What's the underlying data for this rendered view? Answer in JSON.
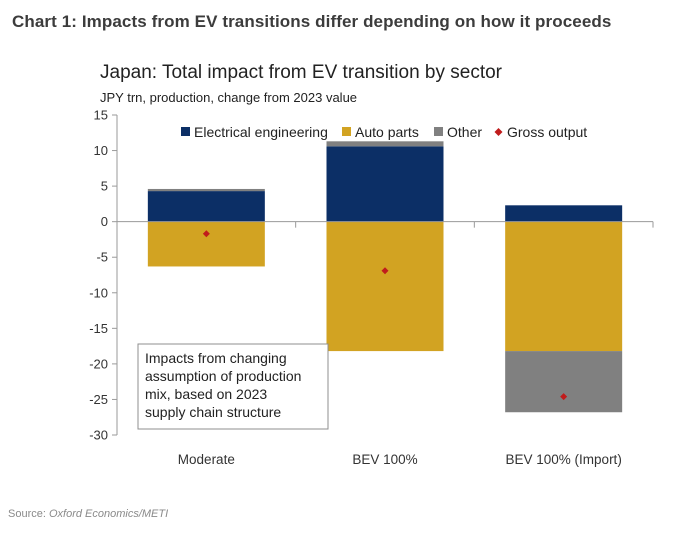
{
  "headline": "Chart 1: Impacts from EV transitions differ depending on how it proceeds",
  "source": {
    "prefix": "Source: ",
    "value": "Oxford Economics/METI"
  },
  "colors": {
    "electrical": "#0c2f66",
    "auto_parts": "#d2a322",
    "other": "#808080",
    "gross": "#c01c1c"
  },
  "chart_data": {
    "type": "bar",
    "stacked": true,
    "title": "Japan: Total impact from EV transition by sector",
    "subtitle": "JPY trn, production, change from 2023 value",
    "categories": [
      "Moderate",
      "BEV 100%",
      "BEV 100% (Import)"
    ],
    "series": [
      {
        "name": "Electrical engineering",
        "values": [
          4.3,
          10.6,
          2.3
        ]
      },
      {
        "name": "Auto parts",
        "values": [
          -6.3,
          -18.2,
          -18.2
        ]
      },
      {
        "name": "Other",
        "values": [
          0.3,
          0.7,
          -8.6
        ]
      }
    ],
    "gross_output": {
      "name": "Gross output",
      "values": [
        -1.7,
        -6.9,
        -24.6
      ]
    },
    "ylim": [
      -30,
      15
    ],
    "yticks": [
      15,
      10,
      5,
      0,
      -5,
      -10,
      -15,
      -20,
      -25,
      -30
    ],
    "legend": "top",
    "annotation": [
      "Impacts from changing",
      "assumption of production",
      "mix, based on 2023",
      "supply chain structure"
    ]
  }
}
